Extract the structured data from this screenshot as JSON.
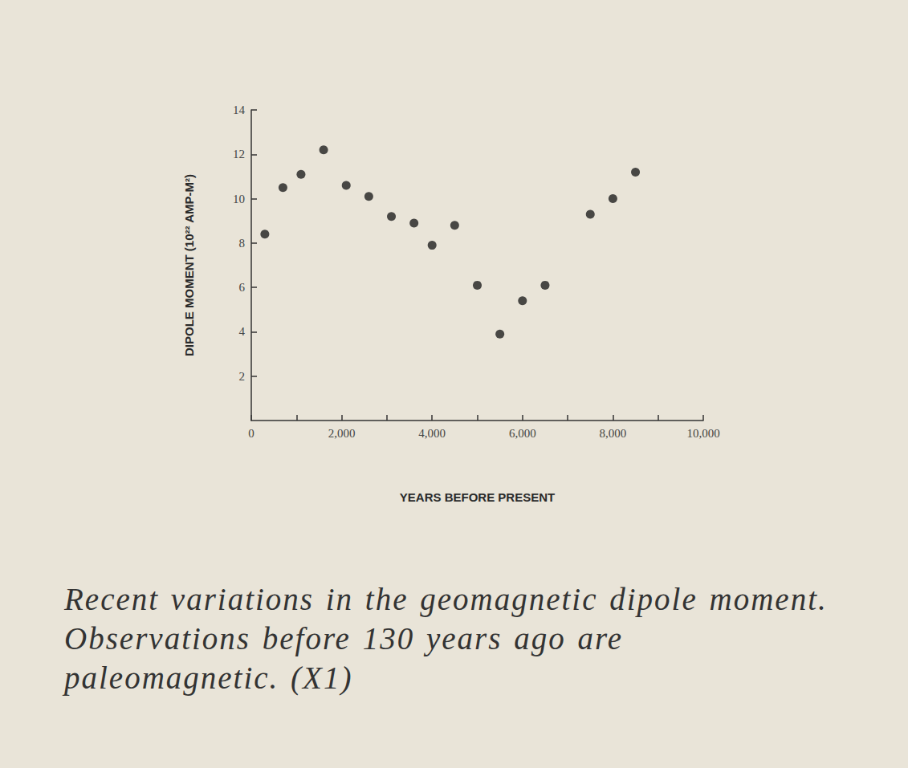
{
  "chart_data": {
    "type": "scatter",
    "xlabel": "YEARS BEFORE PRESENT",
    "ylabel": "DIPOLE MOMENT (10²² AMP-M²)",
    "caption": "Recent variations in the geomagnetic dipole moment. Observations before 130 years ago are paleomagnetic. (X1)",
    "x": [
      300,
      700,
      1100,
      1600,
      2100,
      2600,
      3100,
      3600,
      4000,
      4500,
      5000,
      5500,
      6000,
      6500,
      7500,
      8000,
      8500
    ],
    "values": [
      8.4,
      10.5,
      11.1,
      12.2,
      10.6,
      10.1,
      9.2,
      8.9,
      7.9,
      8.8,
      6.1,
      3.9,
      5.4,
      6.1,
      9.3,
      10.0,
      11.2
    ],
    "color": "#1f1f1f",
    "marker": "circle",
    "xlim": [
      0,
      10000
    ],
    "xticks": [
      0,
      {
        "value": 2000,
        "label": "2,000"
      },
      {
        "value": 4000,
        "label": "4,000"
      },
      {
        "value": 6000,
        "label": "6,000"
      },
      {
        "value": 8000,
        "label": "8,000"
      },
      {
        "value": 10000,
        "label": "10,000"
      }
    ],
    "ylim": [
      0,
      14
    ],
    "yticks": [
      2,
      4,
      6,
      8,
      10,
      12,
      14
    ],
    "grid": false
  }
}
